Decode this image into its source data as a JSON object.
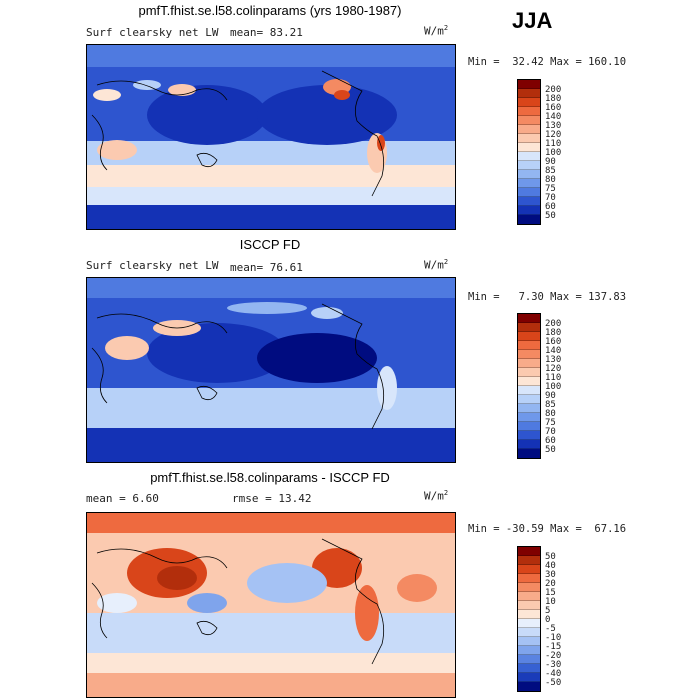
{
  "season": "JJA",
  "panels": [
    {
      "title": "pmfT.fhist.se.l58.colinparams (yrs 1980-1987)",
      "left_label": "Surf clearsky net LW",
      "mean_label": "mean=  83.21",
      "units": "W/m",
      "units_sup": "2",
      "minmax": "Min =  32.42 Max = 160.10",
      "colorbar_labels": [
        "200",
        "180",
        "160",
        "140",
        "130",
        "120",
        "110",
        "100",
        "90",
        "85",
        "80",
        "75",
        "70",
        "60",
        "50"
      ]
    },
    {
      "title": "ISCCP FD",
      "left_label": "Surf clearsky net LW",
      "mean_label": "mean=  76.61",
      "units": "W/m",
      "units_sup": "2",
      "minmax": "Min =   7.30 Max = 137.83",
      "colorbar_labels": [
        "200",
        "180",
        "160",
        "140",
        "130",
        "120",
        "110",
        "100",
        "90",
        "85",
        "80",
        "75",
        "70",
        "60",
        "50"
      ]
    },
    {
      "title": "pmfT.fhist.se.l58.colinparams - ISCCP FD",
      "left_label": "mean =   6.60",
      "mean_label": "rmse =  13.42",
      "units": "W/m",
      "units_sup": "2",
      "minmax": "Min = -30.59 Max =  67.16",
      "colorbar_labels": [
        "50",
        "40",
        "30",
        "20",
        "15",
        "10",
        "5",
        "0",
        "-5",
        "-10",
        "-15",
        "-20",
        "-30",
        "-40",
        "-50"
      ]
    }
  ],
  "colors": {
    "abs_scale": [
      "#7f0000",
      "#b22e0c",
      "#d9451a",
      "#ee6a3f",
      "#f48a62",
      "#f8ab8a",
      "#fbcab0",
      "#fde6d6",
      "#d8e6fb",
      "#b7d1f8",
      "#93b6f1",
      "#6f98ea",
      "#4f7ae0",
      "#2e55cf",
      "#1432b5",
      "#000c80"
    ],
    "diff_scale": [
      "#7f0000",
      "#b22e0c",
      "#d9451a",
      "#ee6a3f",
      "#f48a62",
      "#f8ab8a",
      "#fbcab0",
      "#fde6d6",
      "#e7effc",
      "#c8dbf9",
      "#a5c2f4",
      "#7fa4ec",
      "#5a83e1",
      "#3761d2",
      "#1a3cb9",
      "#000c80"
    ]
  }
}
